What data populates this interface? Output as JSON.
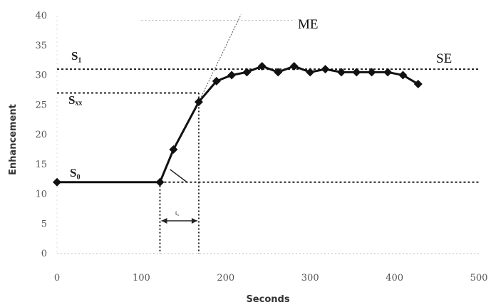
{
  "chart_data": {
    "type": "line",
    "xlabel": "Seconds",
    "ylabel": "Enhancement",
    "xlim": [
      0,
      500
    ],
    "ylim": [
      0,
      40
    ],
    "x_ticks": [
      "0",
      "100",
      "200",
      "300",
      "400",
      "500"
    ],
    "y_ticks": [
      "0",
      "5",
      "10",
      "15",
      "20",
      "25",
      "30",
      "35",
      "40"
    ],
    "grid": false,
    "series": [
      {
        "x": [
          0,
          122,
          138,
          168,
          189,
          207,
          225,
          243,
          262,
          281,
          300,
          318,
          337,
          355,
          373,
          392,
          410,
          428
        ],
        "y": [
          12,
          12,
          17.5,
          25.5,
          29,
          30,
          30.5,
          31.5,
          30.5,
          31.5,
          30.5,
          31,
          30.5,
          30.5,
          30.5,
          30.5,
          30,
          28.5
        ]
      }
    ],
    "reference_lines": {
      "S0": 12,
      "S1": 31,
      "Sxx": 27
    },
    "annotations": {
      "me": "ME",
      "se": "SE",
      "s1": "S₁",
      "sxx": "Sₓₓ",
      "s0": "S₀",
      "tx": "tₓ"
    }
  }
}
